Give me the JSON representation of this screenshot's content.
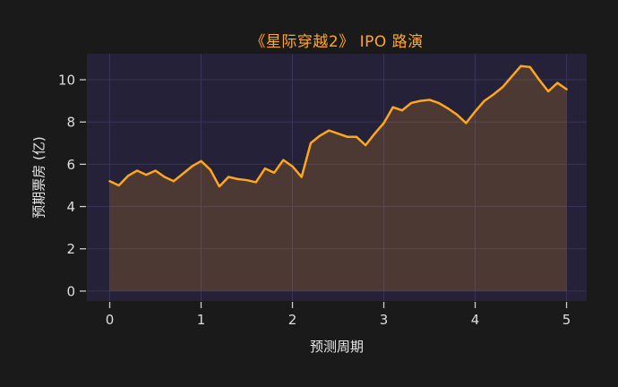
{
  "figure": {
    "background": "#1a1a1a",
    "plot_background": "#252139",
    "grid_color": "#393456",
    "tick_color": "#cccccc",
    "tick_label_color": "#dedede",
    "axis_label_color": "#e8e8e8",
    "title_color": "#ffa726"
  },
  "chart_data": {
    "type": "area",
    "title": "《星际穿越2》 IPO 路演",
    "xlabel": "预测周期",
    "ylabel": "预期票房 (亿)",
    "xlim": [
      -0.25,
      5.22
    ],
    "ylim": [
      -0.47,
      11.23
    ],
    "xticks": [
      0,
      1,
      2,
      3,
      4,
      5
    ],
    "yticks": [
      0,
      2,
      4,
      6,
      8,
      10
    ],
    "grid": true,
    "legend": null,
    "series": [
      {
        "color": "#ffa61b",
        "fill_opacity": 0.18,
        "line_width": 2.5,
        "x_start": 0,
        "x_step": 0.1,
        "values": [
          5.2,
          5.0,
          5.45,
          5.7,
          5.5,
          5.7,
          5.4,
          5.2,
          5.55,
          5.9,
          6.15,
          5.75,
          4.95,
          5.4,
          5.3,
          5.25,
          5.15,
          5.8,
          5.6,
          6.2,
          5.9,
          5.4,
          7.0,
          7.35,
          7.6,
          7.45,
          7.3,
          7.3,
          6.9,
          7.45,
          7.95,
          8.7,
          8.55,
          8.9,
          9.0,
          9.05,
          8.9,
          8.65,
          8.35,
          7.95,
          8.5,
          9.0,
          9.3,
          9.65,
          10.15,
          10.65,
          10.6,
          10.0,
          9.45,
          9.85,
          9.55
        ]
      }
    ]
  }
}
